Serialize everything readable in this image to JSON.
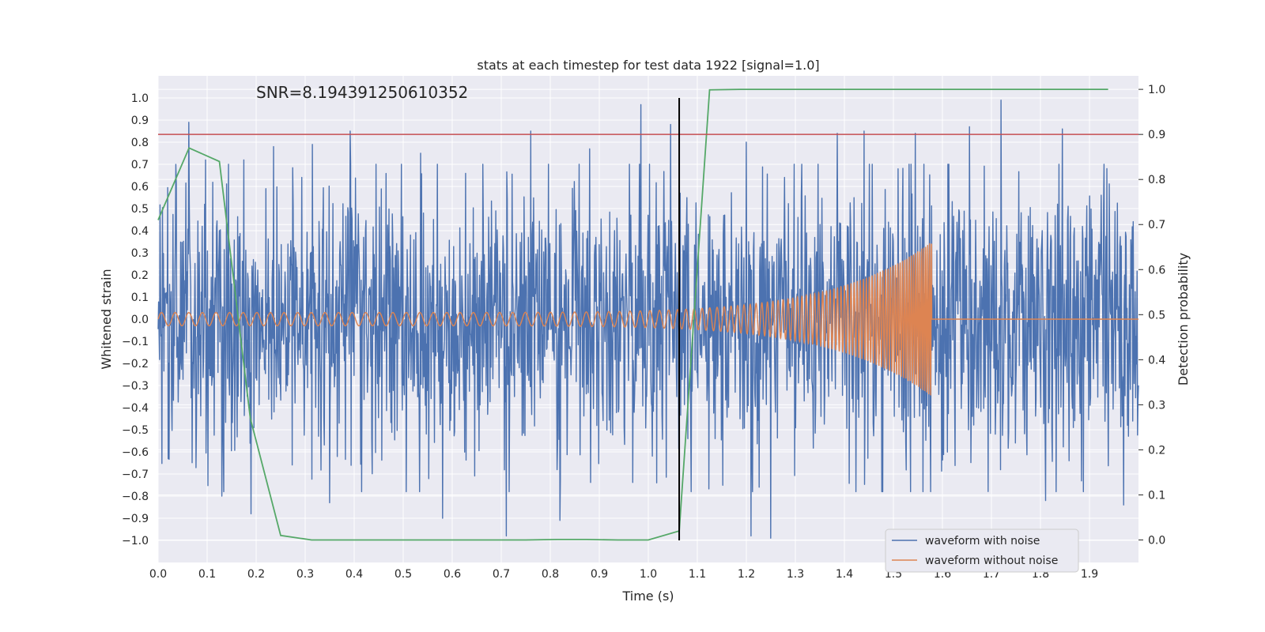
{
  "chart_data": {
    "type": "line",
    "title": "stats at each timestep for test data 1922 [signal=1.0]",
    "annotation": "SNR=8.194391250610352",
    "xlabel": "Time (s)",
    "ylabel": "Whitened strain",
    "y2label": "Detection probability",
    "xlim": [
      0.0,
      2.0
    ],
    "ylim": [
      -1.1,
      1.1
    ],
    "y2lim": [
      -0.05,
      1.03
    ],
    "grid": true,
    "legend_position": "bottom-right",
    "x_ticks": [
      "0.0",
      "0.1",
      "0.2",
      "0.3",
      "0.4",
      "0.5",
      "0.6",
      "0.7",
      "0.8",
      "0.9",
      "1.0",
      "1.1",
      "1.2",
      "1.3",
      "1.4",
      "1.5",
      "1.6",
      "1.7",
      "1.8",
      "1.9"
    ],
    "y_ticks": [
      "1.0",
      "0.9",
      "0.8",
      "0.7",
      "0.6",
      "0.5",
      "0.4",
      "0.3",
      "0.2",
      "0.1",
      "0.0",
      "−0.1",
      "−0.2",
      "−0.3",
      "−0.4",
      "−0.5",
      "−0.6",
      "−0.7",
      "−0.8",
      "−0.9",
      "−1.0"
    ],
    "y2_ticks": [
      "1.0",
      "0.9",
      "0.8",
      "0.7",
      "0.6",
      "0.5",
      "0.4",
      "0.3",
      "0.2",
      "0.1",
      "0.0"
    ],
    "threshold": {
      "y2": 0.9,
      "color": "#c44e52"
    },
    "event_marker": {
      "x": 1.063,
      "y_range": [
        -1.0,
        1.0
      ],
      "color": "#000000"
    },
    "series": [
      {
        "name": "waveform with noise",
        "axis": "left",
        "color": "#4c72b0",
        "x_range": [
          0.0,
          2.0
        ],
        "n_points": 2048,
        "noise_std": 0.3,
        "peaks": [
          {
            "x": 0.063,
            "y": 0.89
          },
          {
            "x": 0.097,
            "y": 0.72
          },
          {
            "x": 0.13,
            "y": -0.8
          },
          {
            "x": 0.175,
            "y": 0.72
          },
          {
            "x": 0.19,
            "y": -0.88
          },
          {
            "x": 0.235,
            "y": 0.78
          },
          {
            "x": 0.315,
            "y": 0.79
          },
          {
            "x": 0.35,
            "y": -0.83
          },
          {
            "x": 0.392,
            "y": 0.85
          },
          {
            "x": 0.535,
            "y": 0.75
          },
          {
            "x": 0.58,
            "y": -0.9
          },
          {
            "x": 0.71,
            "y": -0.98
          },
          {
            "x": 0.76,
            "y": 0.85
          },
          {
            "x": 0.82,
            "y": -0.91
          },
          {
            "x": 0.88,
            "y": 0.77
          },
          {
            "x": 0.985,
            "y": 0.97
          },
          {
            "x": 1.045,
            "y": 0.88
          },
          {
            "x": 1.2,
            "y": 0.8
          },
          {
            "x": 1.21,
            "y": -0.98
          },
          {
            "x": 1.25,
            "y": -0.99
          },
          {
            "x": 1.385,
            "y": 0.84
          },
          {
            "x": 1.44,
            "y": 0.85
          },
          {
            "x": 1.545,
            "y": 0.84
          },
          {
            "x": 1.655,
            "y": 0.87
          },
          {
            "x": 1.72,
            "y": 0.99
          },
          {
            "x": 1.81,
            "y": -0.82
          },
          {
            "x": 1.845,
            "y": 0.86
          },
          {
            "x": 1.97,
            "y": -0.84
          }
        ]
      },
      {
        "name": "waveform without noise",
        "axis": "left",
        "color": "#dd8452",
        "model": "chirp",
        "x_range": [
          0.0,
          2.0
        ],
        "merger_time": 1.578,
        "amplitude_start": 0.03,
        "amplitude_peak": 0.35,
        "frequency_start": 36,
        "frequency_peak": 260
      },
      {
        "name": "detection probability",
        "axis": "right",
        "color": "#55a868",
        "x": [
          0.0,
          0.063,
          0.125,
          0.188,
          0.25,
          0.313,
          0.375,
          0.438,
          0.5,
          0.563,
          0.625,
          0.688,
          0.75,
          0.813,
          0.875,
          0.938,
          1.0,
          1.063,
          1.125,
          1.188,
          1.25,
          1.313,
          1.375,
          1.438,
          1.5,
          1.563,
          1.625,
          1.688,
          1.75,
          1.813,
          1.875,
          1.938
        ],
        "y": [
          0.71,
          0.87,
          0.84,
          0.27,
          0.01,
          0.0,
          0.0,
          0.0,
          0.0,
          0.0,
          0.0,
          0.0,
          0.0,
          0.001,
          0.001,
          0.0,
          0.0,
          0.02,
          0.999,
          1.0,
          1.0,
          1.0,
          1.0,
          1.0,
          1.0,
          1.0,
          1.0,
          1.0,
          1.0,
          1.0,
          1.0,
          1.0
        ]
      }
    ]
  }
}
